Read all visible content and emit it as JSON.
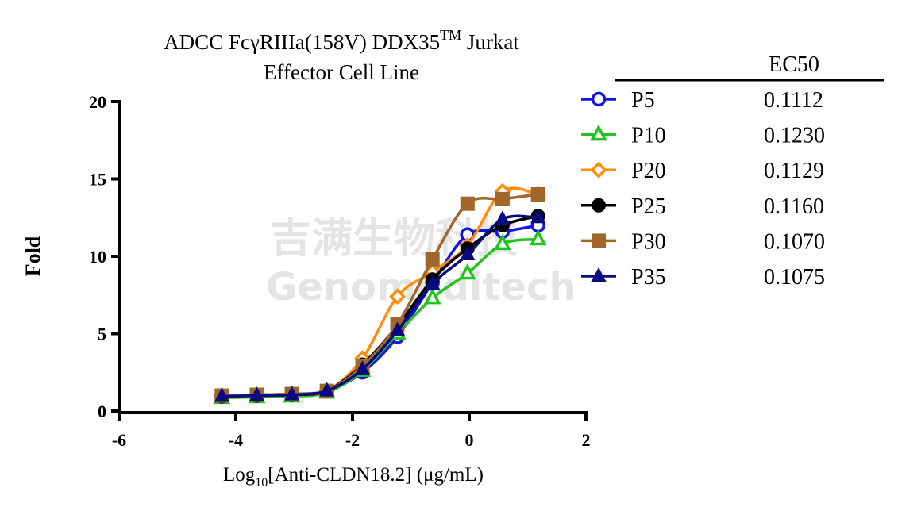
{
  "chart_data": {
    "type": "line",
    "title": {
      "main": "ADCC FcγRIIIa(158V) DDX35",
      "superscript": "TM",
      "rest": " Jurkat",
      "line2": "Effector Cell Line"
    },
    "x_label": {
      "main": "Log",
      "subscript": "10",
      "rest": "[Anti-CLDN18.2] (μg/mL)"
    },
    "y_label": "Fold",
    "watermark": [
      "吉满生物科技",
      "Genomeditech"
    ],
    "legend_header": "EC50",
    "xlim": [
      -6,
      2
    ],
    "xticks": [
      -6,
      -4,
      -2,
      0,
      2
    ],
    "ylim": [
      0,
      20
    ],
    "yticks": [
      0,
      5,
      10,
      15,
      20
    ],
    "x": [
      -4.24,
      -3.64,
      -3.04,
      -2.44,
      -1.83,
      -1.23,
      -0.63,
      -0.03,
      0.57,
      1.18
    ],
    "series": [
      {
        "name": "P5",
        "ec50": "0.1112",
        "color": "#1414e6",
        "marker": "circle-open",
        "values": [
          1.0,
          1.05,
          1.1,
          1.3,
          2.5,
          4.8,
          8.3,
          11.4,
          11.6,
          12.0
        ]
      },
      {
        "name": "P10",
        "ec50": "0.1230",
        "color": "#22c322",
        "marker": "triangle-open",
        "values": [
          0.85,
          0.9,
          0.95,
          1.2,
          2.6,
          5.0,
          7.3,
          8.9,
          10.8,
          11.1
        ]
      },
      {
        "name": "P20",
        "ec50": "0.1129",
        "color": "#ff8c0a",
        "marker": "diamond-open",
        "values": [
          1.0,
          1.05,
          1.1,
          1.3,
          3.4,
          7.4,
          9.0,
          10.7,
          14.2,
          14.0
        ]
      },
      {
        "name": "P25",
        "ec50": "0.1160",
        "color": "#000000",
        "marker": "circle",
        "values": [
          0.95,
          1.0,
          1.05,
          1.3,
          3.0,
          5.5,
          8.5,
          10.5,
          12.0,
          12.6
        ]
      },
      {
        "name": "P30",
        "ec50": "0.1070",
        "color": "#a0662a",
        "marker": "square",
        "values": [
          1.0,
          1.05,
          1.1,
          1.3,
          2.9,
          5.6,
          9.8,
          13.4,
          13.7,
          14.0
        ]
      },
      {
        "name": "P35",
        "ec50": "0.1075",
        "color": "#0a0a80",
        "marker": "triangle",
        "values": [
          0.95,
          1.0,
          1.05,
          1.3,
          2.7,
          5.2,
          8.2,
          10.1,
          12.4,
          12.5
        ]
      }
    ]
  }
}
